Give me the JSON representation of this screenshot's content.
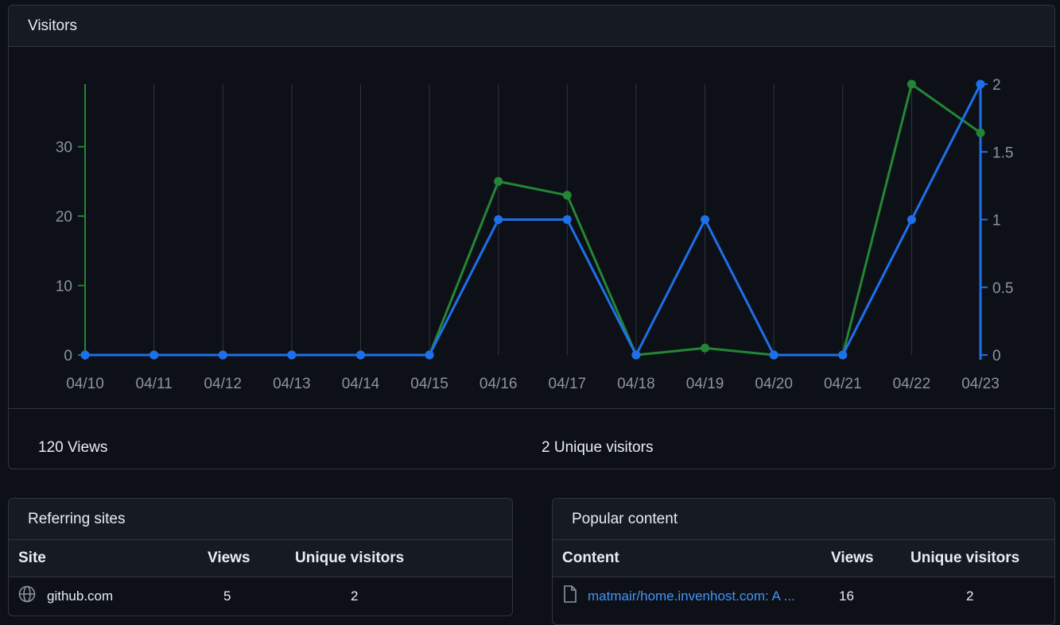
{
  "visitors": {
    "title": "Visitors",
    "views_total": "120 Views",
    "unique_total": "2 Unique visitors"
  },
  "colors": {
    "views": "#238636",
    "unique": "#1f6feb",
    "grid": "#30363d",
    "tick": "#8b949e"
  },
  "chart_data": {
    "type": "line",
    "categories": [
      "04/10",
      "04/11",
      "04/12",
      "04/13",
      "04/14",
      "04/15",
      "04/16",
      "04/17",
      "04/18",
      "04/19",
      "04/20",
      "04/21",
      "04/22",
      "04/23"
    ],
    "series": [
      {
        "axis": "left",
        "color": "#238636",
        "values": [
          0,
          0,
          0,
          0,
          0,
          0,
          25,
          23,
          0,
          1,
          0,
          0,
          39,
          32
        ]
      },
      {
        "axis": "right",
        "color": "#1f6feb",
        "values": [
          0,
          0,
          0,
          0,
          0,
          0,
          1,
          1,
          0,
          1,
          0,
          0,
          1,
          2
        ]
      }
    ],
    "left_axis": {
      "ticks": [
        0,
        10,
        20,
        30
      ],
      "range": [
        0,
        39
      ]
    },
    "right_axis": {
      "ticks": [
        0,
        0.5,
        1,
        1.5,
        2
      ],
      "range": [
        0,
        2
      ]
    },
    "grid": "vertical"
  },
  "referring": {
    "title": "Referring sites",
    "columns": [
      "Site",
      "Views",
      "Unique visitors"
    ],
    "rows": [
      {
        "site": "github.com",
        "views": "5",
        "unique": "2",
        "icon": "globe-icon"
      }
    ]
  },
  "popular": {
    "title": "Popular content",
    "columns": [
      "Content",
      "Views",
      "Unique visitors"
    ],
    "rows": [
      {
        "content": "matmair/home.invenhost.com: A ...",
        "views": "16",
        "unique": "2",
        "icon": "file-icon"
      }
    ]
  }
}
